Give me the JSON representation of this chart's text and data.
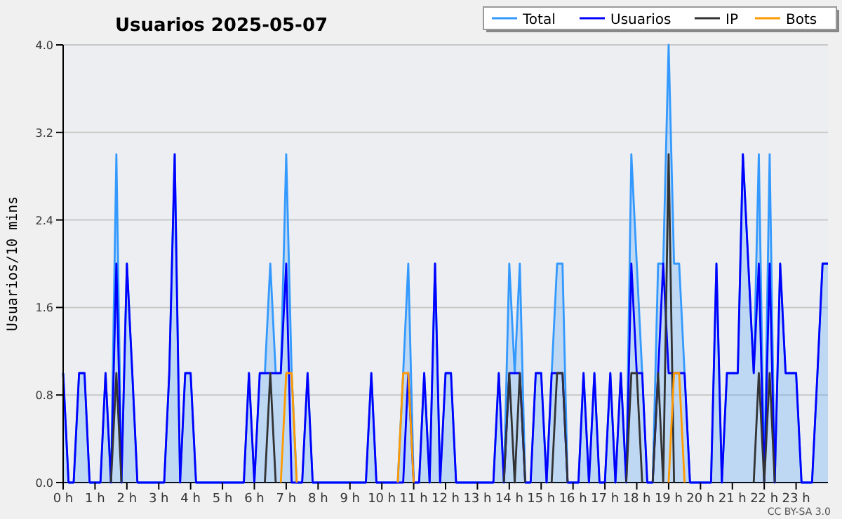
{
  "chart_data": {
    "type": "line",
    "title": "Usuarios  2025-05-07",
    "ylabel": "Usuarios/10 mins",
    "x": [
      0,
      0.17,
      0.33,
      0.5,
      0.67,
      0.83,
      1,
      1.17,
      1.33,
      1.5,
      1.67,
      1.83,
      2,
      2.17,
      2.33,
      2.5,
      2.67,
      2.83,
      3,
      3.17,
      3.33,
      3.5,
      3.67,
      3.83,
      4,
      4.17,
      4.33,
      4.5,
      4.67,
      4.83,
      5,
      5.17,
      5.33,
      5.5,
      5.67,
      5.83,
      6,
      6.17,
      6.33,
      6.5,
      6.67,
      6.83,
      7,
      7.17,
      7.33,
      7.5,
      7.67,
      7.83,
      8,
      8.17,
      8.33,
      8.5,
      8.67,
      8.83,
      9,
      9.17,
      9.33,
      9.5,
      9.67,
      9.83,
      10,
      10.17,
      10.33,
      10.5,
      10.67,
      10.83,
      11,
      11.17,
      11.33,
      11.5,
      11.67,
      11.83,
      12,
      12.17,
      12.33,
      12.5,
      12.67,
      12.83,
      13,
      13.17,
      13.33,
      13.5,
      13.67,
      13.83,
      14,
      14.17,
      14.33,
      14.5,
      14.67,
      14.83,
      15,
      15.17,
      15.33,
      15.5,
      15.67,
      15.83,
      16,
      16.17,
      16.33,
      16.5,
      16.67,
      16.83,
      17,
      17.17,
      17.33,
      17.5,
      17.67,
      17.83,
      18,
      18.17,
      18.33,
      18.5,
      18.67,
      18.83,
      19,
      19.17,
      19.33,
      19.5,
      19.67,
      19.83,
      20,
      20.17,
      20.33,
      20.5,
      20.67,
      20.83,
      21,
      21.17,
      21.33,
      21.5,
      21.67,
      21.83,
      22,
      22.17,
      22.33,
      22.5,
      22.67,
      22.83,
      23,
      23.17,
      23.33,
      23.5,
      23.67,
      23.83,
      24
    ],
    "series": [
      {
        "name": "Total",
        "type": "area",
        "color": "#3399ff",
        "values": [
          1,
          0,
          0,
          1,
          1,
          0,
          0,
          0,
          1,
          0,
          3,
          0,
          2,
          1,
          0,
          0,
          0,
          0,
          0,
          0,
          1,
          3,
          0,
          1,
          1,
          0,
          0,
          0,
          0,
          0,
          0,
          0,
          0,
          0,
          0,
          1,
          0,
          1,
          1,
          2,
          1,
          1,
          3,
          1,
          0,
          0,
          1,
          0,
          0,
          0,
          0,
          0,
          0,
          0,
          0,
          0,
          0,
          0,
          1,
          0,
          0,
          0,
          0,
          0,
          1,
          2,
          0,
          0,
          1,
          0,
          2,
          0,
          1,
          1,
          0,
          0,
          0,
          0,
          0,
          0,
          0,
          0,
          1,
          0,
          2,
          1,
          2,
          0,
          0,
          1,
          1,
          0,
          1,
          2,
          2,
          0,
          0,
          0,
          1,
          0,
          1,
          0,
          0,
          1,
          0,
          1,
          0,
          3,
          2,
          1,
          0,
          0,
          2,
          2,
          4,
          2,
          2,
          1,
          0,
          0,
          0,
          0,
          0,
          2,
          0,
          1,
          1,
          1,
          3,
          2,
          1,
          3,
          0,
          3,
          0,
          2,
          1,
          1,
          1,
          0,
          0,
          0,
          1,
          2,
          2
        ]
      },
      {
        "name": "Usuarios",
        "color": "#0000ff",
        "values": [
          1,
          0,
          0,
          1,
          1,
          0,
          0,
          0,
          1,
          0,
          2,
          0,
          2,
          1,
          0,
          0,
          0,
          0,
          0,
          0,
          1,
          3,
          0,
          1,
          1,
          0,
          0,
          0,
          0,
          0,
          0,
          0,
          0,
          0,
          0,
          1,
          0,
          1,
          1,
          1,
          1,
          1,
          2,
          0,
          0,
          0,
          1,
          0,
          0,
          0,
          0,
          0,
          0,
          0,
          0,
          0,
          0,
          0,
          1,
          0,
          0,
          0,
          0,
          0,
          0,
          1,
          0,
          0,
          1,
          0,
          2,
          0,
          1,
          1,
          0,
          0,
          0,
          0,
          0,
          0,
          0,
          0,
          1,
          0,
          1,
          1,
          1,
          0,
          0,
          1,
          1,
          0,
          1,
          1,
          1,
          0,
          0,
          0,
          1,
          0,
          1,
          0,
          0,
          1,
          0,
          1,
          0,
          2,
          1,
          1,
          0,
          0,
          1,
          2,
          1,
          1,
          1,
          1,
          0,
          0,
          0,
          0,
          0,
          2,
          0,
          1,
          1,
          1,
          3,
          2,
          1,
          2,
          0,
          2,
          0,
          2,
          1,
          1,
          1,
          0,
          0,
          0,
          1,
          2,
          2
        ]
      },
      {
        "name": "IP",
        "color": "#333333",
        "values": [
          null,
          null,
          null,
          null,
          null,
          null,
          null,
          null,
          null,
          0,
          1,
          0,
          null,
          null,
          null,
          null,
          null,
          null,
          null,
          null,
          null,
          null,
          null,
          null,
          null,
          null,
          null,
          null,
          null,
          null,
          null,
          null,
          null,
          null,
          null,
          null,
          null,
          null,
          0,
          1,
          0,
          null,
          null,
          null,
          null,
          null,
          null,
          null,
          null,
          null,
          null,
          null,
          null,
          null,
          null,
          null,
          null,
          null,
          null,
          null,
          null,
          null,
          null,
          null,
          null,
          null,
          null,
          null,
          null,
          null,
          null,
          null,
          null,
          null,
          null,
          null,
          null,
          null,
          null,
          null,
          null,
          null,
          null,
          0,
          1,
          0,
          1,
          0,
          null,
          null,
          null,
          null,
          0,
          1,
          1,
          0,
          null,
          null,
          null,
          null,
          null,
          null,
          null,
          null,
          null,
          null,
          0,
          1,
          1,
          0,
          null,
          0,
          1,
          0,
          3,
          0,
          null,
          null,
          null,
          null,
          null,
          null,
          null,
          null,
          null,
          null,
          null,
          null,
          null,
          null,
          0,
          1,
          0,
          1,
          0,
          null,
          null,
          null,
          null,
          null,
          null,
          null,
          null,
          null,
          null
        ]
      },
      {
        "name": "Bots",
        "color": "#ff9900",
        "values": [
          null,
          null,
          null,
          null,
          null,
          null,
          null,
          null,
          null,
          null,
          null,
          null,
          null,
          null,
          null,
          null,
          null,
          null,
          null,
          null,
          null,
          null,
          null,
          null,
          null,
          null,
          null,
          null,
          null,
          null,
          null,
          null,
          null,
          null,
          null,
          null,
          null,
          null,
          null,
          null,
          null,
          0,
          1,
          1,
          0,
          null,
          null,
          null,
          null,
          null,
          null,
          null,
          null,
          null,
          null,
          null,
          null,
          null,
          null,
          null,
          null,
          null,
          null,
          0,
          1,
          1,
          0,
          null,
          null,
          null,
          null,
          null,
          null,
          null,
          null,
          null,
          null,
          null,
          null,
          null,
          null,
          null,
          null,
          null,
          null,
          null,
          null,
          null,
          null,
          null,
          null,
          null,
          null,
          null,
          null,
          null,
          null,
          null,
          null,
          null,
          null,
          null,
          null,
          null,
          null,
          null,
          null,
          null,
          null,
          null,
          null,
          null,
          null,
          null,
          0,
          1,
          1,
          0,
          null,
          null,
          null,
          null,
          null,
          null,
          null,
          null,
          null,
          null,
          null,
          null,
          null,
          null,
          null,
          null,
          null,
          null,
          null,
          null,
          null,
          null,
          null,
          null,
          null,
          null,
          null
        ]
      }
    ],
    "xlim": [
      0,
      24
    ],
    "xticks": [
      {
        "value": 0,
        "label": "0 h"
      },
      {
        "value": 1,
        "label": "1 h"
      },
      {
        "value": 2,
        "label": "2 h"
      },
      {
        "value": 3,
        "label": "3 h"
      },
      {
        "value": 4,
        "label": "4 h"
      },
      {
        "value": 5,
        "label": "5 h"
      },
      {
        "value": 6,
        "label": "6 h"
      },
      {
        "value": 7,
        "label": "7 h"
      },
      {
        "value": 8,
        "label": "8 h"
      },
      {
        "value": 9,
        "label": "9 h"
      },
      {
        "value": 10,
        "label": "10 h"
      },
      {
        "value": 11,
        "label": "11 h"
      },
      {
        "value": 12,
        "label": "12 h"
      },
      {
        "value": 13,
        "label": "13 h"
      },
      {
        "value": 14,
        "label": "14 h"
      },
      {
        "value": 15,
        "label": "15 h"
      },
      {
        "value": 16,
        "label": "16 h"
      },
      {
        "value": 17,
        "label": "17 h"
      },
      {
        "value": 18,
        "label": "18 h"
      },
      {
        "value": 19,
        "label": "19 h"
      },
      {
        "value": 20,
        "label": "20 h"
      },
      {
        "value": 21,
        "label": "21 h"
      },
      {
        "value": 22,
        "label": "22 h"
      },
      {
        "value": 23,
        "label": "23 h"
      }
    ],
    "ylim": [
      0,
      4
    ],
    "yticks": [
      {
        "value": 0,
        "label": "0.0"
      },
      0.8,
      1.6,
      2.4,
      3.2,
      {
        "value": 4,
        "label": "4.0"
      }
    ],
    "grid": "y",
    "legend": "top right",
    "marker": "none",
    "line_style": "solid",
    "annotations": [
      "CC BY-SA 3.0"
    ]
  }
}
